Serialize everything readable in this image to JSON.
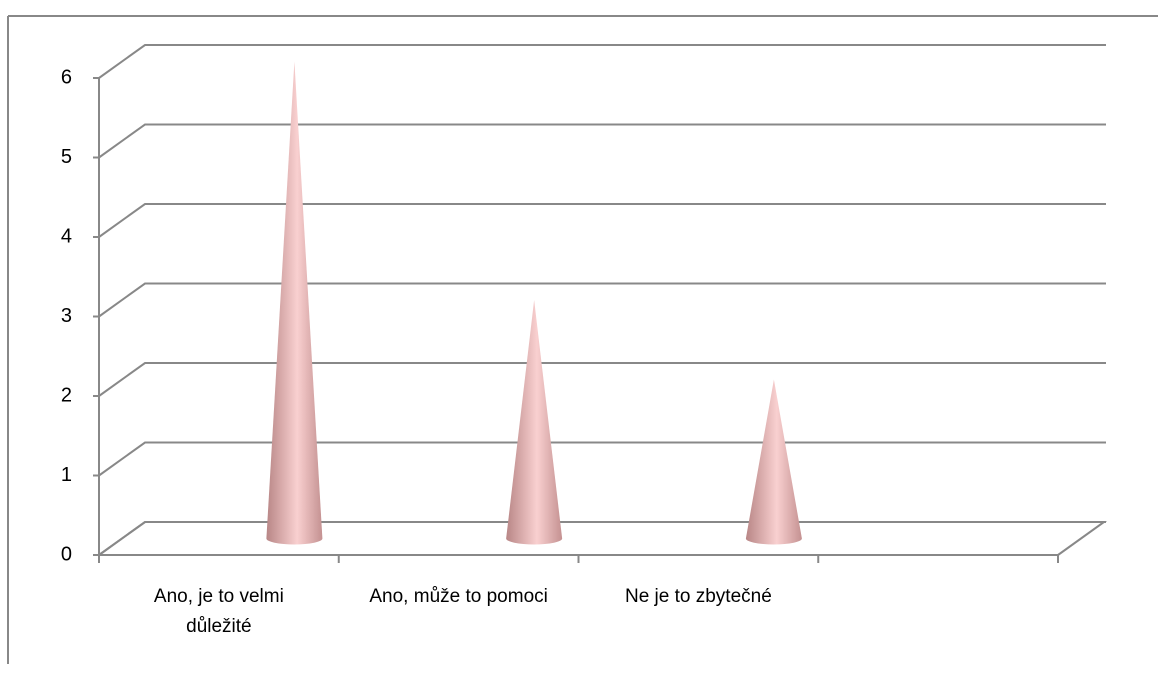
{
  "chart_data": {
    "type": "cone",
    "categories": [
      "Ano, je to velmi důležité",
      "Ano, může to pomoci",
      "Ne je to zbytečné",
      null
    ],
    "values": [
      6,
      3,
      2,
      null
    ],
    "color": "#e8b0b0",
    "ylim": [
      0,
      6
    ],
    "yticks": [
      0,
      1,
      2,
      3,
      4,
      5,
      6
    ],
    "grid": true
  }
}
